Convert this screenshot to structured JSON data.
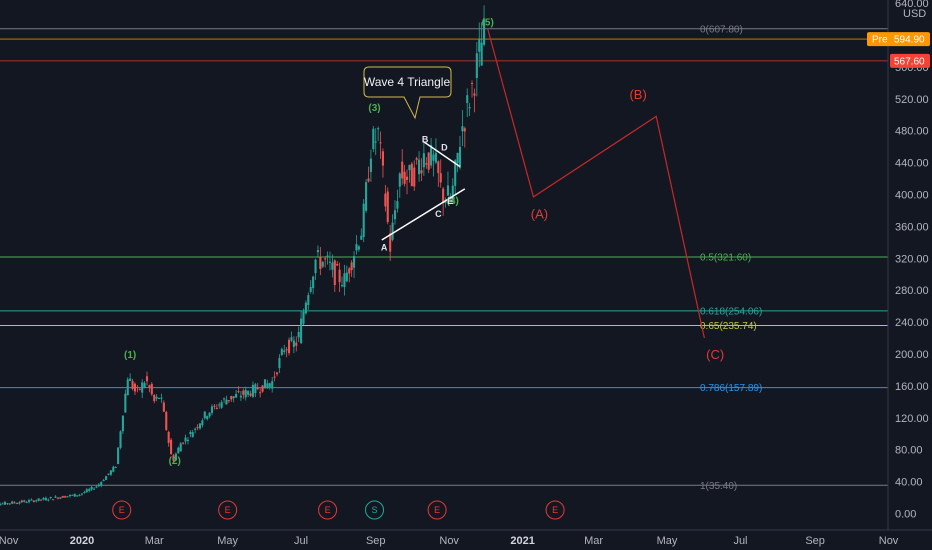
{
  "chart_data": {
    "type": "candlestick",
    "currency": "USD",
    "y_ticks": [
      "0.00",
      "40.00",
      "80.00",
      "120.00",
      "160.00",
      "200.00",
      "240.00",
      "280.00",
      "320.00",
      "360.00",
      "400.00",
      "440.00",
      "480.00",
      "520.00",
      "560.00",
      "640.00"
    ],
    "x_ticks": [
      {
        "label": "Nov",
        "bold": false
      },
      {
        "label": "2020",
        "bold": true
      },
      {
        "label": "Mar",
        "bold": false
      },
      {
        "label": "May",
        "bold": false
      },
      {
        "label": "Jul",
        "bold": false
      },
      {
        "label": "Sep",
        "bold": false
      },
      {
        "label": "Nov",
        "bold": false
      },
      {
        "label": "2021",
        "bold": true
      },
      {
        "label": "Mar",
        "bold": false
      },
      {
        "label": "May",
        "bold": false
      },
      {
        "label": "Jul",
        "bold": false
      },
      {
        "label": "Sep",
        "bold": false
      },
      {
        "label": "Nov",
        "bold": false
      }
    ],
    "fib_levels": [
      {
        "label": "0(607.80)",
        "value": 607.8,
        "color": "#787b86"
      },
      {
        "label": "0.5(321.60)",
        "value": 321.6,
        "color": "#4caf50"
      },
      {
        "label": "0.618(254.06)",
        "value": 254.06,
        "color": "#26a69a"
      },
      {
        "label": "0.65(235.74)",
        "value": 235.74,
        "color": "#c0ca33"
      },
      {
        "label": "0.786(157.89)",
        "value": 157.89,
        "color": "#2196f3"
      },
      {
        "label": "1(35.40)",
        "value": 35.4,
        "color": "#787b86"
      }
    ],
    "price_tags": [
      {
        "prefix": "Pre",
        "label": "594.90",
        "value": 594.9,
        "color": "#ff9800"
      },
      {
        "prefix": "",
        "label": "567.60",
        "value": 567.6,
        "color": "#f44336"
      }
    ],
    "wave_labels": [
      {
        "label": "(1)",
        "x": "2020-02-10",
        "y": 195
      },
      {
        "label": "(2)",
        "x": "2020-03-18",
        "y": 62
      },
      {
        "label": "(3)",
        "x": "2020-08-31",
        "y": 505
      },
      {
        "label": "(4)",
        "x": "2020-11-04",
        "y": 388
      },
      {
        "label": "(5)",
        "x": "2020-12-03",
        "y": 612
      }
    ],
    "triangle_labels": [
      {
        "label": "A",
        "x": "2020-09-08",
        "y": 330
      },
      {
        "label": "B",
        "x": "2020-10-12",
        "y": 465
      },
      {
        "label": "C",
        "x": "2020-10-23",
        "y": 372
      },
      {
        "label": "D",
        "x": "2020-10-28",
        "y": 455
      },
      {
        "label": "E",
        "x": "2020-11-02",
        "y": 388
      }
    ],
    "callout": {
      "text": "Wave 4 Triangle",
      "x": "2020-10-20",
      "y": 512
    },
    "projection": {
      "labels": [
        "(A)",
        "(B)",
        "(C)"
      ],
      "points": [
        {
          "x": "2020-12-03",
          "y": 607.8
        },
        {
          "x": "2021-01-10",
          "y": 397
        },
        {
          "x": "2021-04-22",
          "y": 498
        },
        {
          "x": "2021-06-01",
          "y": 220
        }
      ]
    },
    "events": [
      {
        "label": "E",
        "x": "2020-02-03",
        "color": "#e53935"
      },
      {
        "label": "E",
        "x": "2020-05-01",
        "color": "#e53935"
      },
      {
        "label": "E",
        "x": "2020-07-23",
        "color": "#e53935"
      },
      {
        "label": "S",
        "x": "2020-08-31",
        "color": "#26a69a"
      },
      {
        "label": "E",
        "x": "2020-10-22",
        "color": "#e53935"
      },
      {
        "label": "E",
        "x": "2021-01-28",
        "color": "#e53935"
      }
    ],
    "grid": false
  }
}
